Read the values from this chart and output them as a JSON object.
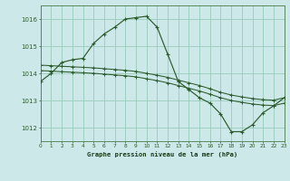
{
  "title": "Graphe pression niveau de la mer (hPa)",
  "bg_color": "#cce8e8",
  "grid_color": "#99ccbb",
  "line_color": "#2d5a2d",
  "xlim": [
    0,
    23
  ],
  "ylim": [
    1011.5,
    1016.5
  ],
  "yticks": [
    1012,
    1013,
    1014,
    1015,
    1016
  ],
  "xticks": [
    0,
    1,
    2,
    3,
    4,
    5,
    6,
    7,
    8,
    9,
    10,
    11,
    12,
    13,
    14,
    15,
    16,
    17,
    18,
    19,
    20,
    21,
    22,
    23
  ],
  "series1_x": [
    0,
    1,
    2,
    3,
    4,
    5,
    6,
    7,
    8,
    9,
    10,
    11,
    12,
    13,
    14,
    15,
    16,
    17,
    18,
    19,
    20,
    21,
    22,
    23
  ],
  "series1_y": [
    1013.7,
    1014.0,
    1014.4,
    1014.5,
    1014.55,
    1015.1,
    1015.45,
    1015.7,
    1016.0,
    1016.05,
    1016.1,
    1015.7,
    1014.7,
    1013.7,
    1013.4,
    1013.1,
    1012.9,
    1012.5,
    1011.85,
    1011.85,
    1012.1,
    1012.55,
    1012.8,
    1013.1
  ],
  "series2_x": [
    0,
    1,
    2,
    3,
    4,
    5,
    6,
    7,
    8,
    9,
    10,
    11,
    12,
    13,
    14,
    15,
    16,
    17,
    18,
    19,
    20,
    21,
    22,
    23
  ],
  "series2_y": [
    1014.3,
    1014.28,
    1014.26,
    1014.24,
    1014.22,
    1014.2,
    1014.17,
    1014.14,
    1014.11,
    1014.07,
    1014.0,
    1013.93,
    1013.85,
    1013.75,
    1013.65,
    1013.55,
    1013.43,
    1013.3,
    1013.2,
    1013.13,
    1013.07,
    1013.03,
    1013.01,
    1013.1
  ],
  "series3_x": [
    0,
    1,
    2,
    3,
    4,
    5,
    6,
    7,
    8,
    9,
    10,
    11,
    12,
    13,
    14,
    15,
    16,
    17,
    18,
    19,
    20,
    21,
    22,
    23
  ],
  "series3_y": [
    1014.1,
    1014.08,
    1014.06,
    1014.04,
    1014.02,
    1014.0,
    1013.97,
    1013.94,
    1013.91,
    1013.87,
    1013.8,
    1013.73,
    1013.65,
    1013.55,
    1013.45,
    1013.35,
    1013.23,
    1013.1,
    1013.0,
    1012.93,
    1012.87,
    1012.83,
    1012.81,
    1012.9
  ]
}
